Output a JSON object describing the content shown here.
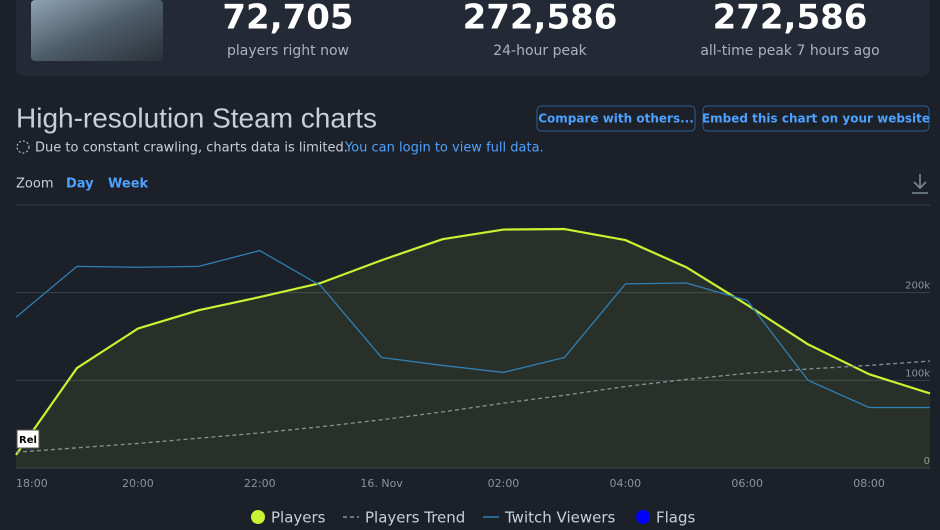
{
  "header": {
    "stats": [
      {
        "value": "72,705",
        "label": "players right now"
      },
      {
        "value": "272,586",
        "label": "24-hour peak"
      },
      {
        "value": "272,586",
        "label": "all-time peak 7 hours ago"
      }
    ]
  },
  "section": {
    "title": "High-resolution Steam charts",
    "buttons": [
      "Compare with others...",
      "Embed this chart on your website"
    ],
    "notice": "Due to constant crawling, charts data is limited.",
    "notice_link": "You can login to view full data.",
    "zoom_label": "Zoom",
    "zoom_options": [
      "Day",
      "Week"
    ]
  },
  "chart_data": {
    "type": "line",
    "categories": [
      "18:00",
      null,
      "20:00",
      null,
      "22:00",
      null,
      "16. Nov",
      null,
      "02:00",
      null,
      "04:00",
      null,
      "06:00",
      null,
      "08:00",
      null
    ],
    "ylim": [
      0,
      300000
    ],
    "yticks": [
      0,
      {
        "value": 100000,
        "label": "100k"
      },
      {
        "value": 200000,
        "label": "200k"
      }
    ],
    "grid": true,
    "series": [
      {
        "name": "Players",
        "color": "#c8f332",
        "fill": true,
        "values": [
          15000,
          114000,
          159000,
          180000,
          195000,
          211000,
          237000,
          261000,
          272000,
          272586,
          260000,
          229000,
          186000,
          141000,
          107000,
          85000
        ]
      },
      {
        "name": "Players Trend",
        "color": "#8a8f98",
        "dashed": true,
        "values": [
          18000,
          23000,
          28000,
          34000,
          40000,
          47000,
          55000,
          64000,
          74000,
          83000,
          93000,
          101000,
          108000,
          113000,
          117000,
          122000
        ]
      },
      {
        "name": "Twitch Viewers",
        "color": "#2f7fb5",
        "values": [
          172000,
          230000,
          229000,
          230000,
          248000,
          208000,
          126000,
          117000,
          109000,
          126000,
          210000,
          211000,
          191000,
          100000,
          69000,
          69000
        ]
      }
    ],
    "flags": {
      "name": "Flags",
      "color": "#0000ff",
      "labels": [
        "Rel"
      ]
    }
  }
}
